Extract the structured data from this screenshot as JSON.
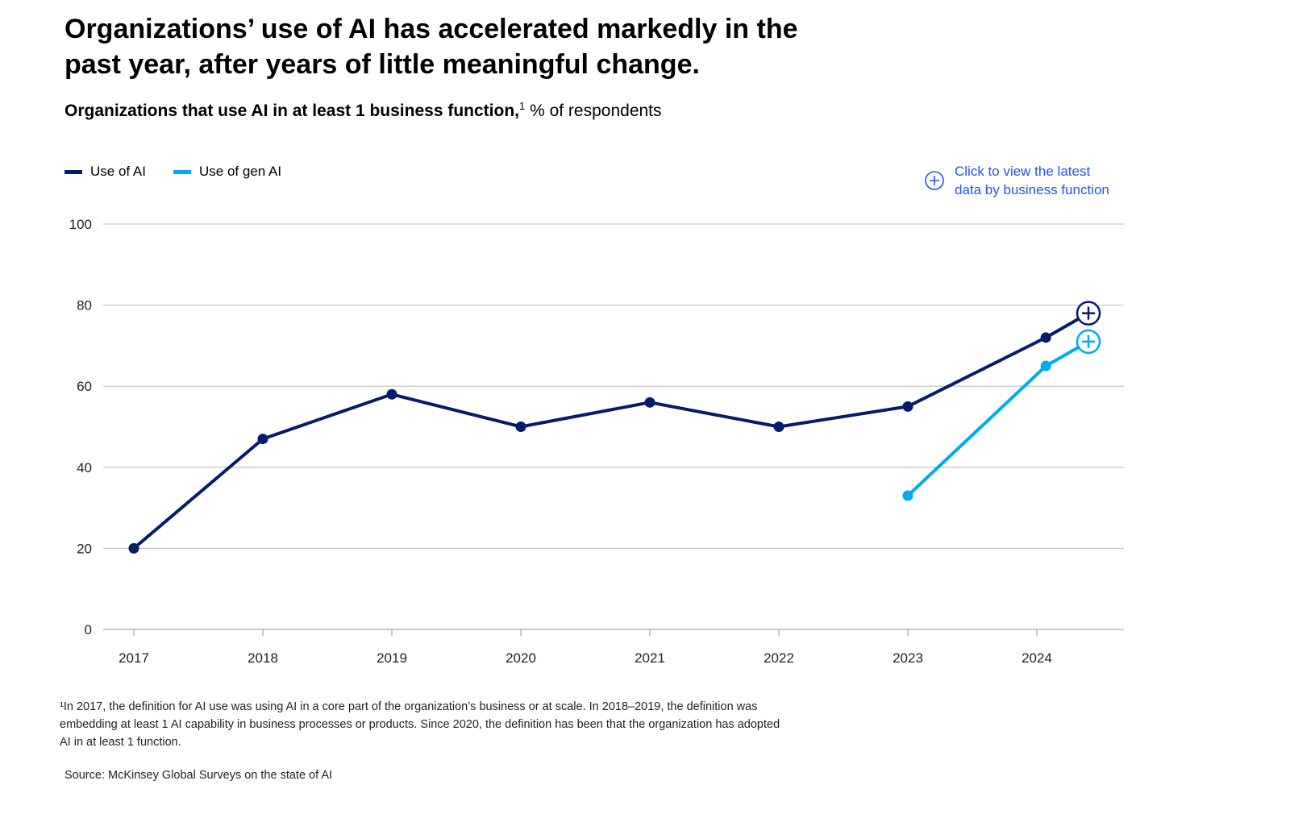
{
  "title": "Organizations’ use of AI has accelerated markedly in the past year, after years of little meaningful change.",
  "subtitle_bold": "Organizations that use AI in at least 1 business function,",
  "subtitle_footnote_ref": "1",
  "subtitle_unit": " % of respondents",
  "cta": {
    "label_line1": "Click to view the latest",
    "label_line2": "data by business function",
    "icon": "plus-circle-icon"
  },
  "footnote": "¹In 2017, the definition for AI use was using AI in a core part of the organization’s business or at scale. In 2018–2019, the definition was embedding at least 1 AI capability in business processes or products. Since 2020, the definition has been that the organization has adopted AI in at least 1 function.",
  "source": "Source: McKinsey Global Surveys on the state of AI",
  "chart_data": {
    "type": "line",
    "title": "Organizations that use AI in at least 1 business function, % of respondents",
    "ylim": [
      0,
      100
    ],
    "yticks": [
      0,
      20,
      40,
      60,
      80,
      100
    ],
    "xticks": [
      "2017",
      "2018",
      "2019",
      "2020",
      "2021",
      "2022",
      "2023",
      "2024"
    ],
    "grid": true,
    "legend": "top-left",
    "series": [
      {
        "name": "Use of AI",
        "color": "#051c6b",
        "x": [
          2017,
          2018,
          2019,
          2020,
          2021,
          2022,
          2023,
          2024.07,
          2024.4
        ],
        "values": [
          20,
          47,
          58,
          50,
          56,
          50,
          55,
          72,
          78
        ],
        "end_marker": "plus-circle"
      },
      {
        "name": "Use of gen AI",
        "color": "#00a9f4",
        "x": [
          2023,
          2024.07,
          2024.4
        ],
        "values": [
          33,
          65,
          71
        ],
        "end_marker": "plus-circle"
      }
    ]
  }
}
